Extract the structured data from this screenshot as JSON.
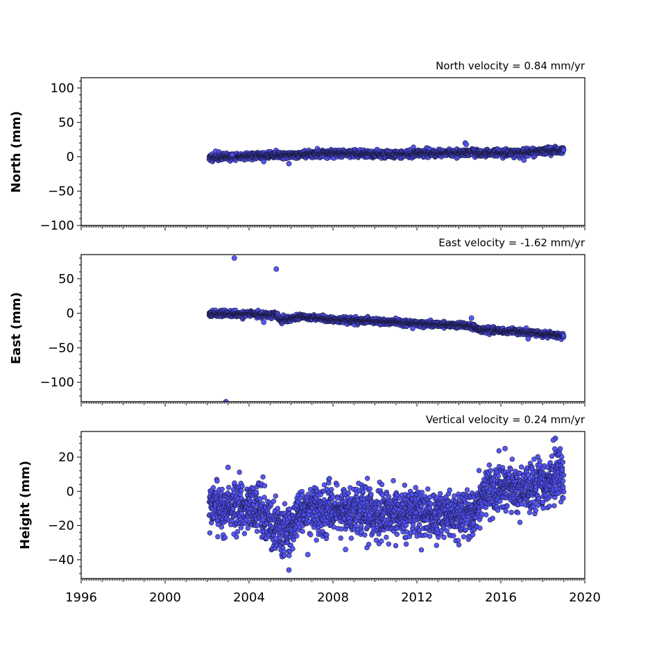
{
  "chart_data": [
    {
      "type": "scatter",
      "title": "North velocity = 0.84 mm/yr",
      "ylabel": "North (mm)",
      "xlim": [
        1996,
        2020
      ],
      "ylim": [
        -100,
        115
      ],
      "yticks": [
        -100,
        -50,
        0,
        50,
        100
      ],
      "yticklabels": [
        "−100",
        "−50",
        "0",
        "50",
        "100"
      ],
      "show_x_ticklabels": false,
      "series": [
        {
          "trend": [
            [
              2002.1,
              -1
            ],
            [
              2005.0,
              2
            ],
            [
              2008.0,
              5
            ],
            [
              2011.0,
              4
            ],
            [
              2014.0,
              6
            ],
            [
              2016.5,
              5
            ],
            [
              2019.0,
              10
            ]
          ],
          "noise": 2.5,
          "outliers": [
            [
              2005.9,
              -10
            ],
            [
              2014.3,
              20
            ],
            [
              2014.35,
              18
            ],
            [
              2003.2,
              3
            ],
            [
              2017.1,
              -5
            ],
            [
              2004.7,
              -7
            ]
          ]
        }
      ]
    },
    {
      "type": "scatter",
      "title": "East velocity = -1.62 mm/yr",
      "ylabel": "East (mm)",
      "xlim": [
        1996,
        2020
      ],
      "ylim": [
        -128,
        85
      ],
      "yticks": [
        -100,
        -50,
        0,
        50
      ],
      "yticklabels": [
        "−100",
        "−50",
        "0",
        "50"
      ],
      "show_x_ticklabels": false,
      "series": [
        {
          "trend": [
            [
              2002.1,
              0
            ],
            [
              2005.3,
              -2
            ],
            [
              2005.5,
              -10
            ],
            [
              2006.5,
              -5
            ],
            [
              2008.0,
              -9
            ],
            [
              2011.0,
              -13
            ],
            [
              2013.0,
              -16
            ],
            [
              2014.5,
              -18
            ],
            [
              2015.0,
              -24
            ],
            [
              2017.0,
              -27
            ],
            [
              2019.0,
              -33
            ]
          ],
          "noise": 2.0,
          "outliers": [
            [
              2003.3,
              80
            ],
            [
              2005.3,
              64
            ],
            [
              2002.9,
              -128
            ],
            [
              2004.7,
              -13
            ],
            [
              2014.6,
              -7
            ],
            [
              2011.8,
              -22
            ],
            [
              2017.3,
              -37
            ]
          ]
        }
      ]
    },
    {
      "type": "scatter",
      "title": "Vertical velocity = 0.24 mm/yr",
      "ylabel": "Height (mm)",
      "xlim": [
        1996,
        2020
      ],
      "xticks": [
        1996,
        2000,
        2004,
        2008,
        2012,
        2016,
        2020
      ],
      "xticklabels": [
        "1996",
        "2000",
        "2004",
        "2008",
        "2012",
        "2016",
        "2020"
      ],
      "ylim": [
        -51,
        35
      ],
      "yticks": [
        -40,
        -20,
        0,
        20
      ],
      "yticklabels": [
        "−40",
        "−20",
        "0",
        "20"
      ],
      "show_x_ticklabels": true,
      "series": [
        {
          "trend": [
            [
              2002.1,
              -10
            ],
            [
              2004.5,
              -10
            ],
            [
              2005.2,
              -22
            ],
            [
              2005.9,
              -24
            ],
            [
              2006.5,
              -10
            ],
            [
              2009.0,
              -12
            ],
            [
              2011.0,
              -13
            ],
            [
              2014.0,
              -14
            ],
            [
              2014.8,
              -13
            ],
            [
              2015.1,
              0
            ],
            [
              2017.0,
              0
            ],
            [
              2019.0,
              10
            ]
          ],
          "noise": 7.0,
          "outliers": [
            [
              2005.9,
              -46
            ],
            [
              2018.6,
              31
            ],
            [
              2018.5,
              30
            ],
            [
              2016.2,
              25
            ],
            [
              2003.0,
              14
            ],
            [
              2006.8,
              -37
            ],
            [
              2008.6,
              -34
            ]
          ]
        }
      ]
    }
  ]
}
